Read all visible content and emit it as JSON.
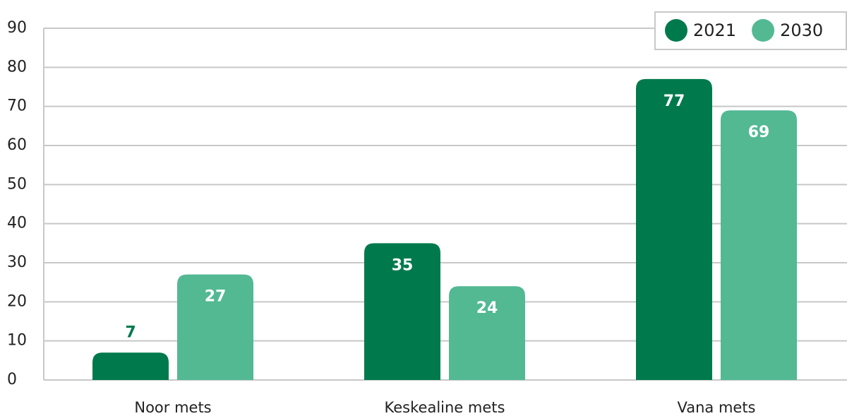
{
  "chart_data": {
    "type": "bar",
    "categories": [
      "Noor mets",
      "Keskealine mets",
      "Vana mets"
    ],
    "series": [
      {
        "name": "2021",
        "color": "#007a4d",
        "values": [
          7,
          35,
          77
        ]
      },
      {
        "name": "2030",
        "color": "#52b993",
        "values": [
          27,
          24,
          69
        ]
      }
    ],
    "ylim": [
      0,
      90
    ],
    "yticks": [
      0,
      10,
      20,
      30,
      40,
      50,
      60,
      70,
      80,
      90
    ],
    "grid": true,
    "legend": "top-right"
  }
}
